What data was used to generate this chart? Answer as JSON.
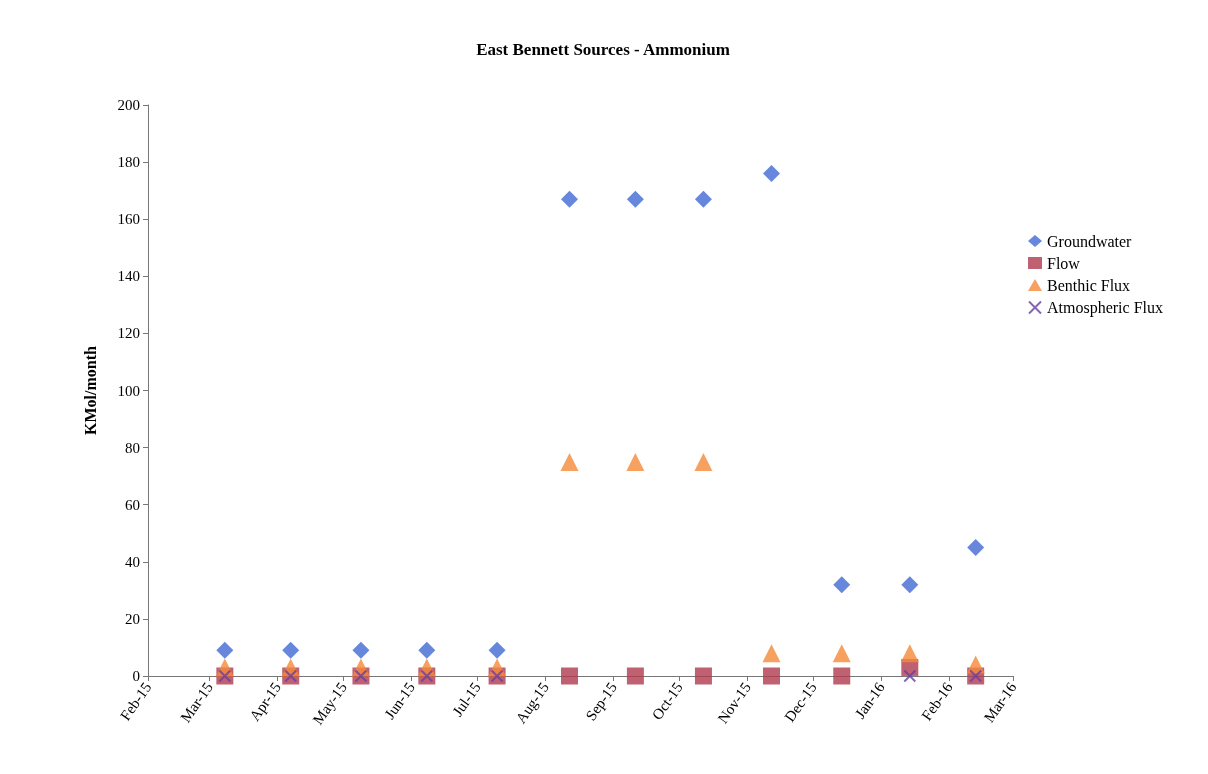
{
  "chart_data": {
    "type": "scatter",
    "title": "East Bennett Sources - Ammonium",
    "ylabel": "KMol/month",
    "x": [
      "2015-03-08",
      "2015-04-07",
      "2015-05-09",
      "2015-06-08",
      "2015-07-10",
      "2015-08-12",
      "2015-09-11",
      "2015-10-12",
      "2015-11-12",
      "2015-12-14",
      "2016-01-14",
      "2016-02-13"
    ],
    "series": [
      {
        "name": "Groundwater",
        "color": "#4169d4",
        "marker": "diamond",
        "values": [
          9,
          9,
          9,
          9,
          9,
          167,
          167,
          167,
          176,
          32,
          32,
          45
        ]
      },
      {
        "name": "Flow",
        "color": "#b03a4e",
        "marker": "square",
        "values": [
          0,
          0,
          0,
          0,
          0,
          0,
          0,
          0,
          0,
          0,
          3,
          0
        ]
      },
      {
        "name": "Benthic Flux",
        "color": "#f5893a",
        "marker": "triangle",
        "values": [
          3,
          3,
          3,
          3,
          3,
          75,
          75,
          75,
          8,
          8,
          8,
          4
        ]
      },
      {
        "name": "Atmospheric Flux",
        "color": "#6a3fa0",
        "marker": "cross",
        "values": [
          0,
          0,
          0,
          0,
          0,
          null,
          null,
          null,
          null,
          null,
          0,
          0
        ]
      }
    ],
    "xlim": [
      "2015-02-01",
      "2016-03-01"
    ],
    "xticks": [
      {
        "value": "2015-02-01",
        "label": "Feb-15"
      },
      {
        "value": "2015-03-01",
        "label": "Mar-15"
      },
      {
        "value": "2015-04-01",
        "label": "Apr-15"
      },
      {
        "value": "2015-05-01",
        "label": "May-15"
      },
      {
        "value": "2015-06-01",
        "label": "Jun-15"
      },
      {
        "value": "2015-07-01",
        "label": "Jul-15"
      },
      {
        "value": "2015-08-01",
        "label": "Aug-15"
      },
      {
        "value": "2015-09-01",
        "label": "Sep-15"
      },
      {
        "value": "2015-10-01",
        "label": "Oct-15"
      },
      {
        "value": "2015-11-01",
        "label": "Nov-15"
      },
      {
        "value": "2015-12-01",
        "label": "Dec-15"
      },
      {
        "value": "2016-01-01",
        "label": "Jan-16"
      },
      {
        "value": "2016-02-01",
        "label": "Feb-16"
      },
      {
        "value": "2016-03-01",
        "label": "Mar-16"
      }
    ],
    "ylim": [
      0,
      200
    ],
    "yticks": [
      0,
      20,
      40,
      60,
      80,
      100,
      120,
      140,
      160,
      180,
      200
    ],
    "grid": false,
    "legend": "right"
  }
}
